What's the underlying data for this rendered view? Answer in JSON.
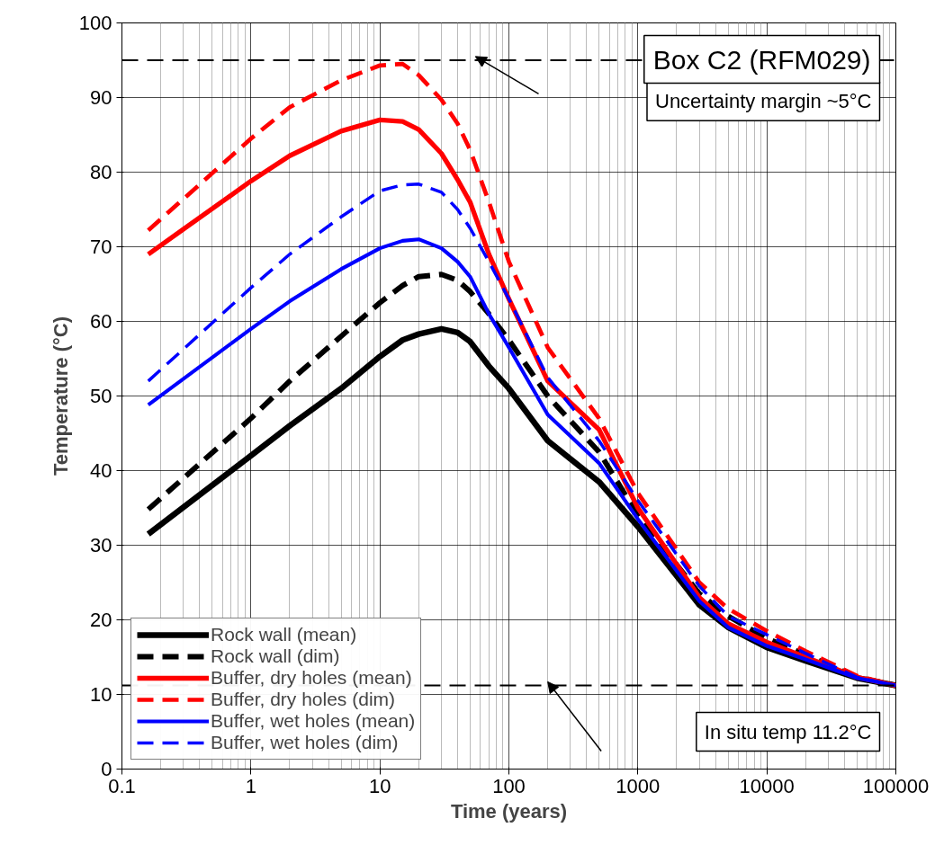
{
  "chart_data": {
    "type": "line",
    "title": "Box C2 (RFM029)",
    "xlabel": "Time (years)",
    "ylabel": "Temperature (°C)",
    "log": "x",
    "xlim": [
      0.1,
      100000
    ],
    "xticks": [
      0.1,
      1,
      10,
      100,
      1000,
      10000,
      100000
    ],
    "ylim": [
      0,
      100
    ],
    "yticks": [
      0,
      10,
      20,
      30,
      40,
      50,
      60,
      70,
      80,
      90,
      100
    ],
    "grid": true,
    "legend": "bottom left",
    "marker": "none",
    "x": [
      0.16,
      1,
      2,
      5,
      10,
      15,
      20,
      30,
      40,
      50,
      70,
      100,
      200,
      500,
      1000,
      3000,
      5000,
      10000,
      20000,
      50000,
      100000
    ],
    "series": [
      {
        "name": "Rock wall (mean)",
        "color": "#000000",
        "line_style": "solid",
        "values": [
          31.5,
          42,
          46,
          51,
          55.3,
          57.5,
          58.3,
          59,
          58.5,
          57.3,
          54,
          51,
          44,
          38.5,
          32.5,
          22,
          19,
          16.3,
          14.5,
          12.2,
          11.2
        ]
      },
      {
        "name": "Rock wall (dim)",
        "color": "#000000",
        "line_style": "dashed",
        "values": [
          34.8,
          47,
          52,
          58,
          62.5,
          64.8,
          66,
          66.3,
          65.5,
          64,
          61,
          57.5,
          50,
          42.5,
          34,
          23.5,
          20.5,
          17.5,
          15.3,
          12.3,
          11.2
        ]
      },
      {
        "name": "Buffer, dry holes (mean)",
        "color": "#ff0000",
        "line_style": "solid",
        "values": [
          69,
          78.8,
          82.2,
          85.5,
          87,
          86.8,
          85.7,
          82.5,
          79,
          76,
          69,
          63,
          52,
          45.5,
          35,
          23,
          19.5,
          17,
          15,
          12.3,
          11.2
        ]
      },
      {
        "name": "Buffer, dry holes (dim)",
        "color": "#ff0000",
        "line_style": "dashed",
        "values": [
          72.2,
          84.5,
          88.7,
          92.3,
          94.3,
          94.5,
          93,
          89.7,
          86.5,
          83,
          76,
          68,
          56.5,
          47,
          37,
          25,
          21.5,
          18.5,
          15.8,
          12.5,
          11.2
        ]
      },
      {
        "name": "Buffer, wet holes (mean)",
        "color": "#0000ff",
        "line_style": "solid",
        "values": [
          48.8,
          59,
          62.7,
          67,
          69.8,
          70.8,
          71,
          69.8,
          68,
          66,
          61,
          56.5,
          47.5,
          41,
          33.5,
          22.5,
          19,
          16.5,
          14.7,
          12.2,
          11.2
        ]
      },
      {
        "name": "Buffer, wet holes (dim)",
        "color": "#0000ff",
        "line_style": "dashed",
        "values": [
          52,
          64.5,
          69,
          74,
          77.5,
          78.3,
          78.4,
          77.3,
          75,
          72.5,
          68,
          63,
          52.5,
          44,
          36,
          24.5,
          20.5,
          18,
          15.5,
          12.3,
          11.2
        ]
      }
    ],
    "ref_lines": [
      {
        "axis": "y",
        "value": 95,
        "label": "Uncertainty margin ~5°C",
        "color": "#000000",
        "line_style": "dashed"
      },
      {
        "axis": "y",
        "value": 11.2,
        "label": "In situ temp 11.2°C",
        "color": "#000000",
        "line_style": "dashed"
      }
    ]
  }
}
